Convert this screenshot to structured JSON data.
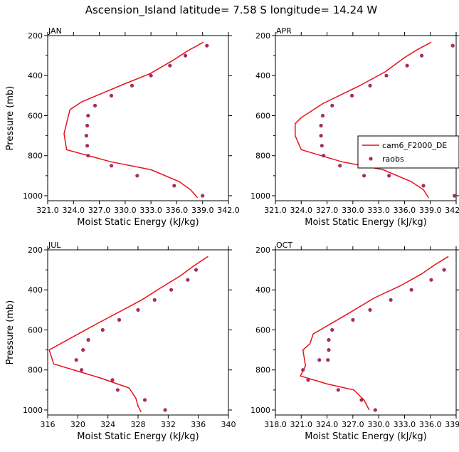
{
  "figure_title": "Ascension_Island  latitude= 7.58 S longitude= 14.24 W",
  "colors": {
    "model": "#e8101a",
    "obs": "#a1305e",
    "axis": "#000000"
  },
  "chart_data": [
    {
      "type": "line",
      "panel": "JAN",
      "xlabel": "Moist Static Energy (kJ/kg)",
      "ylabel": "Pressure (mb)",
      "xlim": [
        321.0,
        342.0
      ],
      "ylim": [
        1025,
        200
      ],
      "xticks": [
        321.0,
        324.0,
        327.0,
        330.0,
        333.0,
        336.0,
        339.0,
        342.0
      ],
      "xtick_labels": [
        "321.0",
        "324.0",
        "327.0",
        "330.0",
        "333.0",
        "336.0",
        "339.0",
        "342.0"
      ],
      "yticks": [
        200,
        400,
        600,
        800,
        1000
      ],
      "series": [
        {
          "kind": "line",
          "x": [
            339.1,
            337.3,
            335.5,
            332.9,
            330.0,
            325.0,
            323.6,
            323.3,
            322.9,
            323.2,
            328.3,
            333.0,
            336.3,
            337.6,
            338.4
          ],
          "y": [
            233,
            275,
            325,
            390,
            440,
            530,
            570,
            620,
            690,
            770,
            830,
            870,
            930,
            970,
            1010
          ]
        },
        {
          "kind": "scatter",
          "x": [
            339.5,
            337.0,
            335.2,
            333.0,
            330.8,
            328.4,
            326.5,
            325.7,
            325.6,
            325.5,
            325.6,
            325.7,
            328.4,
            331.4,
            335.7,
            339.0
          ],
          "y": [
            250,
            300,
            350,
            400,
            450,
            500,
            550,
            600,
            650,
            700,
            750,
            800,
            850,
            900,
            950,
            1000
          ]
        }
      ]
    },
    {
      "type": "line",
      "panel": "APR",
      "xlabel": "Moist Static Energy (kJ/kg)",
      "ylabel": "",
      "xlim": [
        321.0,
        342.0
      ],
      "ylim": [
        1025,
        200
      ],
      "xticks": [
        321.0,
        324.0,
        327.0,
        330.0,
        333.0,
        336.0,
        339.0,
        342.0
      ],
      "xtick_labels": [
        "321.0",
        "324.0",
        "327.0",
        "330.0",
        "333.0",
        "336.0",
        "339.0",
        "342.0"
      ],
      "yticks": [
        200,
        400,
        600,
        800,
        1000
      ],
      "legend": {
        "position": "right",
        "entries": [
          "cam6_F2000_DE",
          "raobs"
        ]
      },
      "series": [
        {
          "name": "cam6_F2000_DE",
          "kind": "line",
          "x": [
            339.1,
            337.5,
            336.0,
            333.8,
            330.8,
            326.5,
            324.0,
            323.3,
            323.3,
            324.0,
            328.7,
            333.5,
            336.8,
            338.2,
            338.8
          ],
          "y": [
            233,
            270,
            310,
            380,
            450,
            540,
            610,
            640,
            700,
            770,
            830,
            870,
            930,
            970,
            1010
          ]
        },
        {
          "name": "raobs",
          "kind": "scatter",
          "x": [
            341.6,
            338.0,
            336.3,
            333.9,
            332.0,
            329.9,
            327.6,
            326.5,
            326.3,
            326.3,
            326.4,
            326.6,
            328.5,
            331.3,
            334.2,
            338.2,
            341.8
          ],
          "y": [
            250,
            300,
            350,
            400,
            450,
            500,
            550,
            600,
            650,
            700,
            750,
            800,
            850,
            900,
            900,
            950,
            1000
          ]
        }
      ]
    },
    {
      "type": "line",
      "panel": "JUL",
      "xlabel": "Moist Static Energy (kJ/kg)",
      "ylabel": "Pressure (mb)",
      "xlim": [
        316,
        340
      ],
      "ylim": [
        1025,
        200
      ],
      "xticks": [
        316,
        320,
        324,
        328,
        332,
        336,
        340
      ],
      "xtick_labels": [
        "316",
        "320",
        "324",
        "328",
        "332",
        "336",
        "340"
      ],
      "yticks": [
        200,
        400,
        600,
        800,
        1000
      ],
      "series": [
        {
          "kind": "line",
          "x": [
            337.3,
            335.4,
            333.6,
            331.0,
            328.5,
            322.5,
            316.2,
            316.8,
            323.0,
            326.8,
            327.7,
            328.0,
            328.4
          ],
          "y": [
            233,
            280,
            330,
            390,
            450,
            570,
            700,
            770,
            840,
            890,
            940,
            980,
            1010
          ]
        },
        {
          "kind": "scatter",
          "x": [
            335.7,
            334.6,
            332.4,
            330.2,
            328.0,
            325.5,
            323.3,
            321.4,
            320.7,
            319.8,
            320.5,
            324.6,
            325.3,
            328.9,
            331.6
          ],
          "y": [
            300,
            350,
            400,
            450,
            500,
            550,
            600,
            650,
            700,
            750,
            800,
            850,
            900,
            950,
            1000
          ]
        }
      ]
    },
    {
      "type": "line",
      "panel": "OCT",
      "xlabel": "Moist Static Energy (kJ/kg)",
      "ylabel": "",
      "xlim": [
        318.0,
        339.0
      ],
      "ylim": [
        1025,
        200
      ],
      "xticks": [
        318.0,
        321.0,
        324.0,
        327.0,
        330.0,
        333.0,
        336.0,
        339.0
      ],
      "xtick_labels": [
        "318.0",
        "321.0",
        "324.0",
        "327.0",
        "330.0",
        "333.0",
        "336.0",
        "339.0"
      ],
      "yticks": [
        200,
        400,
        600,
        800,
        1000
      ],
      "series": [
        {
          "kind": "line",
          "x": [
            338.1,
            336.5,
            335.0,
            332.5,
            329.5,
            326.0,
            322.4,
            322.0,
            321.2,
            321.5,
            320.9,
            324.0,
            327.1,
            328.3,
            328.9
          ],
          "y": [
            233,
            275,
            320,
            380,
            440,
            530,
            620,
            670,
            700,
            780,
            830,
            870,
            900,
            950,
            1000
          ]
        },
        {
          "kind": "scatter",
          "x": [
            337.6,
            336.1,
            333.8,
            331.4,
            329.0,
            327.0,
            324.6,
            324.2,
            324.2,
            324.1,
            323.1,
            321.2,
            321.8,
            325.3,
            328.0,
            329.6
          ],
          "y": [
            300,
            350,
            400,
            450,
            500,
            550,
            600,
            650,
            700,
            750,
            750,
            800,
            850,
            900,
            950,
            1000
          ]
        }
      ]
    }
  ]
}
